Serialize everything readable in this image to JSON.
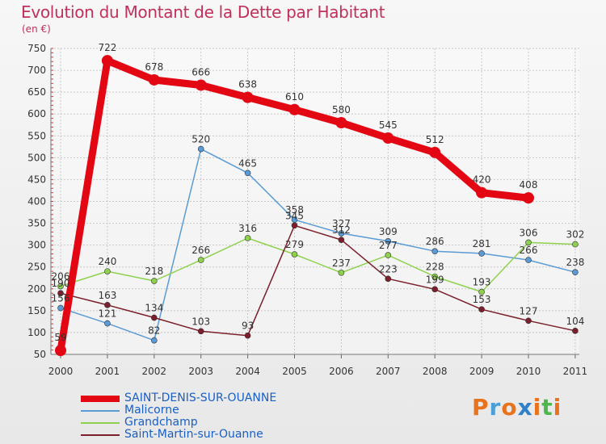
{
  "header": {
    "title": "Evolution du Montant de la Dette par Habitant",
    "unit": "(en €)"
  },
  "logo": {
    "text": "Proxiti",
    "colors": [
      "#e8731c",
      "#4a9fd8",
      "#e8731c",
      "#2f7fc9",
      "#e8731c",
      "#4cb84c",
      "#e8731c"
    ]
  },
  "chart_data": {
    "type": "line",
    "title": "Evolution du Montant de la Dette par Habitant",
    "ylabel": "(en €)",
    "xlabel": "",
    "ylim": [
      50,
      750
    ],
    "yticks": [
      50,
      100,
      150,
      200,
      250,
      300,
      350,
      400,
      450,
      500,
      550,
      600,
      650,
      700,
      750
    ],
    "categories": [
      "2000",
      "2001",
      "2002",
      "2003",
      "2004",
      "2005",
      "2006",
      "2007",
      "2008",
      "2009",
      "2010",
      "2011"
    ],
    "grid": true,
    "legend_position": "bottom",
    "series": [
      {
        "name": "SAINT-DENIS-SUR-OUANNE",
        "color": "#e30613",
        "emphasis": true,
        "values": [
          59,
          722,
          678,
          666,
          638,
          610,
          580,
          545,
          512,
          420,
          408,
          null
        ]
      },
      {
        "name": "Malicorne",
        "color": "#5b9bd5",
        "emphasis": false,
        "values": [
          156,
          121,
          82,
          520,
          465,
          358,
          327,
          309,
          286,
          281,
          266,
          238
        ]
      },
      {
        "name": "Grandchamp",
        "color": "#8fd14f",
        "emphasis": false,
        "values": [
          206,
          240,
          218,
          266,
          316,
          279,
          237,
          277,
          228,
          193,
          306,
          302
        ]
      },
      {
        "name": "Saint-Martin-sur-Ouanne",
        "color": "#7a1f2b",
        "emphasis": false,
        "values": [
          190,
          163,
          134,
          103,
          93,
          345,
          312,
          223,
          199,
          153,
          127,
          104
        ]
      }
    ]
  }
}
